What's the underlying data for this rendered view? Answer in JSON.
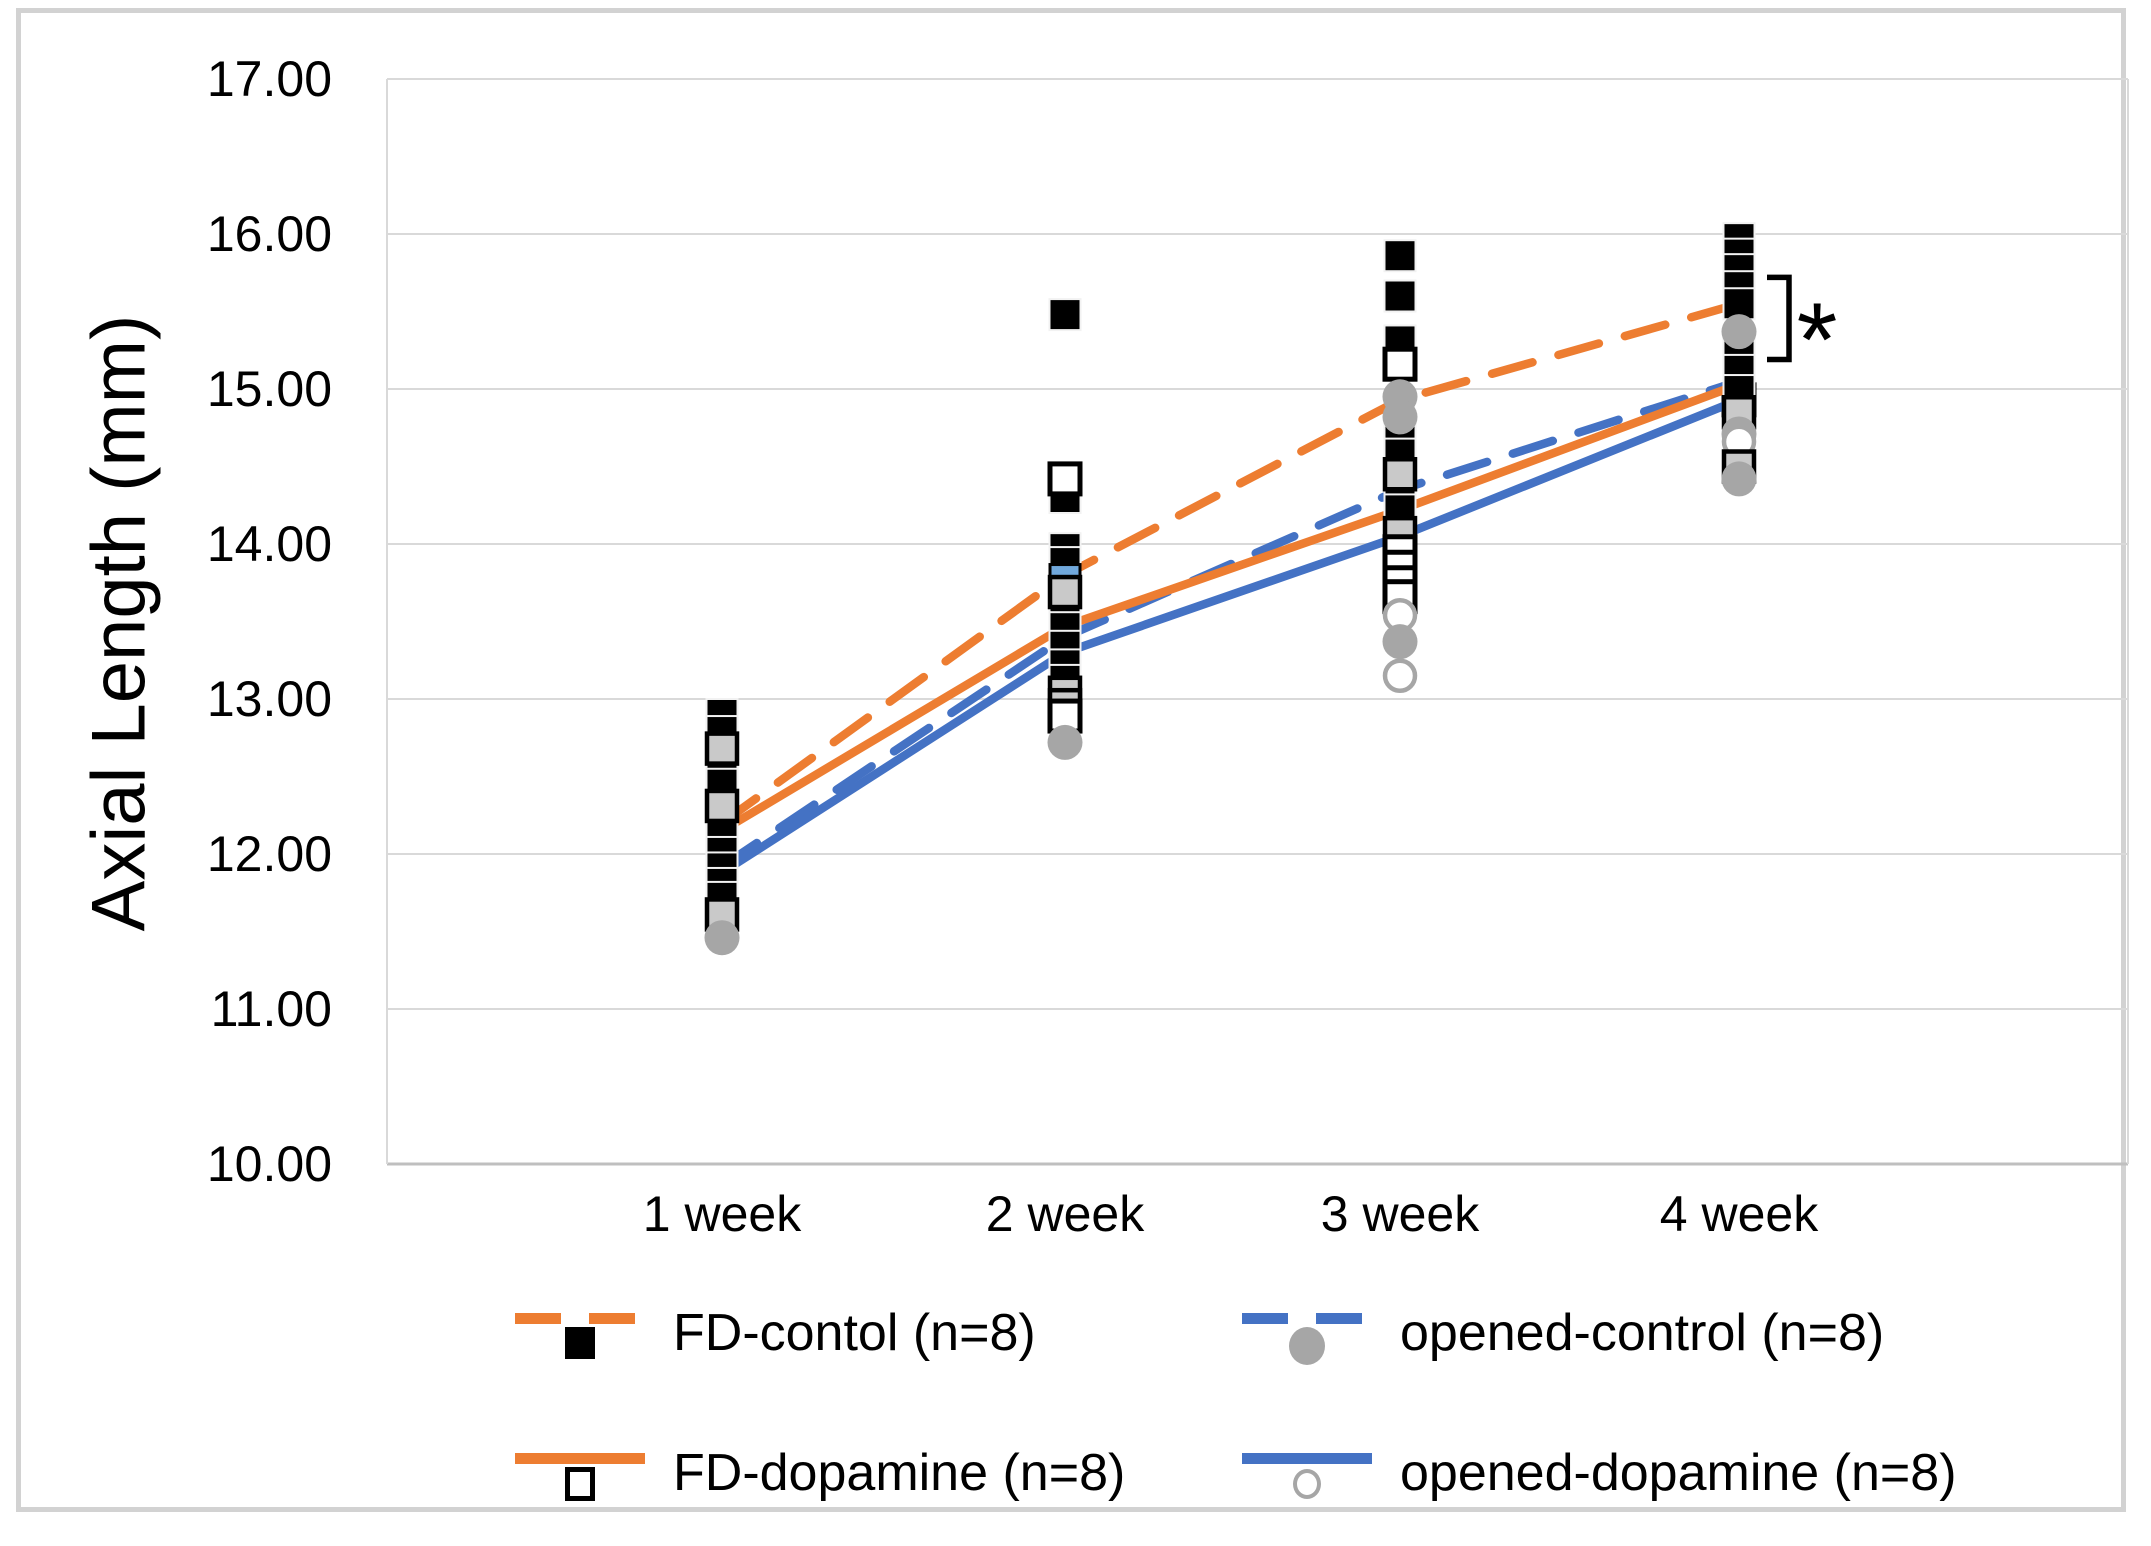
{
  "figure": {
    "background": "#FFFFFF",
    "frame_border_color": "#D2D2D2"
  },
  "legend": {
    "items": [
      {
        "id": "fd_control",
        "label": "FD-contol (n=8)"
      },
      {
        "id": "opened_control",
        "label": "opened-control (n=8)"
      },
      {
        "id": "fd_dopamine",
        "label": "FD-dopamine (n=8)"
      },
      {
        "id": "opened_dopamine",
        "label": "opened-dopamine (n=8)"
      }
    ]
  },
  "chart_data": {
    "type": "line",
    "title": "",
    "y_axis": {
      "label": "Axial Length (mm)",
      "min": 10,
      "max": 17,
      "step": 1,
      "tick_values": [
        17,
        16,
        15,
        14,
        13,
        12,
        11,
        10
      ],
      "tick_labels": [
        "17.00",
        "16.00",
        "15.00",
        "14.00",
        "13.00",
        "12.00",
        "11.00",
        "10.00"
      ]
    },
    "x_axis": {
      "categories": [
        "1 week",
        "2 week",
        "3 week",
        "4 week"
      ]
    },
    "grid_color": "#D9D9D9",
    "axis_color": "#BFBFBF",
    "series": [
      {
        "id": "fd_control",
        "name": "FD-contol (n=8)",
        "color": "#ED7D31",
        "line": "dashed",
        "marker": "black-square",
        "means": [
          12.2,
          13.8,
          14.93,
          15.55
        ]
      },
      {
        "id": "opened_control",
        "name": "opened-control (n=8)",
        "color": "#4472C4",
        "line": "dashed",
        "marker": "gray-circle",
        "means": [
          11.92,
          13.4,
          14.35,
          15.05
        ]
      },
      {
        "id": "fd_dopamine",
        "name": "FD-dopamine (n=8)",
        "color": "#ED7D31",
        "line": "solid",
        "marker": "open-square",
        "means": [
          12.15,
          13.47,
          14.22,
          15.03
        ]
      },
      {
        "id": "opened_dopamine",
        "name": "opened-dopamine (n=8)",
        "color": "#4472C4",
        "line": "solid",
        "marker": "open-circle",
        "means": [
          11.88,
          13.3,
          14.05,
          14.93
        ]
      }
    ],
    "marker_styles": {
      "bs": {
        "name": "black-square",
        "fill": "#000000",
        "stroke": "#F2F2F2"
      },
      "gs": {
        "name": "gray-square",
        "fill": "#C9C9C9",
        "stroke": "#000000"
      },
      "os": {
        "name": "open-square",
        "fill": "#FFFFFF",
        "stroke": "#000000"
      },
      "ls": {
        "name": "lightblue-square",
        "fill": "#70A8DC",
        "stroke": "#000000"
      },
      "gc": {
        "name": "gray-circle",
        "fill": "#A6A6A6",
        "stroke": "#A6A6A6"
      },
      "oc": {
        "name": "open-circle",
        "fill": "#FFFFFF",
        "stroke": "#A6A6A6"
      }
    },
    "scatter_points": [
      {
        "w": 0,
        "t": "bs",
        "v": 12.9
      },
      {
        "w": 0,
        "t": "bs",
        "v": 12.79
      },
      {
        "w": 0,
        "t": "gs",
        "v": 12.68
      },
      {
        "w": 0,
        "t": "bs",
        "v": 12.56
      },
      {
        "w": 0,
        "t": "bs",
        "v": 12.45
      },
      {
        "w": 0,
        "t": "gs",
        "v": 12.31
      },
      {
        "w": 0,
        "t": "bs",
        "v": 12.21
      },
      {
        "w": 0,
        "t": "bs",
        "v": 12.11
      },
      {
        "w": 0,
        "t": "bs",
        "v": 12.01
      },
      {
        "w": 0,
        "t": "bs",
        "v": 11.91
      },
      {
        "w": 0,
        "t": "bs",
        "v": 11.81
      },
      {
        "w": 0,
        "t": "bs",
        "v": 11.72
      },
      {
        "w": 0,
        "t": "gs",
        "v": 11.61
      },
      {
        "w": 0,
        "t": "gc",
        "v": 11.46
      },
      {
        "w": 1,
        "t": "bs",
        "v": 15.48
      },
      {
        "w": 1,
        "t": "os",
        "v": 14.42
      },
      {
        "w": 1,
        "t": "bs",
        "v": 14.3
      },
      {
        "w": 1,
        "t": "bs",
        "v": 13.97
      },
      {
        "w": 1,
        "t": "bs",
        "v": 13.88
      },
      {
        "w": 1,
        "t": "ls",
        "v": 13.79
      },
      {
        "w": 1,
        "t": "gs",
        "v": 13.69
      },
      {
        "w": 1,
        "t": "bs",
        "v": 13.58
      },
      {
        "w": 1,
        "t": "bs",
        "v": 13.46
      },
      {
        "w": 1,
        "t": "bs",
        "v": 13.34
      },
      {
        "w": 1,
        "t": "bs",
        "v": 13.22
      },
      {
        "w": 1,
        "t": "bs",
        "v": 13.12
      },
      {
        "w": 1,
        "t": "gs",
        "v": 13.04
      },
      {
        "w": 1,
        "t": "gs",
        "v": 12.96
      },
      {
        "w": 1,
        "t": "os",
        "v": 12.89
      },
      {
        "w": 1,
        "t": "gc",
        "v": 12.72
      },
      {
        "w": 2,
        "t": "bs",
        "v": 15.86
      },
      {
        "w": 2,
        "t": "bs",
        "v": 15.6
      },
      {
        "w": 2,
        "t": "bs",
        "v": 15.31
      },
      {
        "w": 2,
        "t": "os",
        "v": 15.16
      },
      {
        "w": 2,
        "t": "gc",
        "v": 14.95
      },
      {
        "w": 2,
        "t": "gc",
        "v": 14.82
      },
      {
        "w": 2,
        "t": "bs",
        "v": 14.7
      },
      {
        "w": 2,
        "t": "bs",
        "v": 14.58
      },
      {
        "w": 2,
        "t": "gs",
        "v": 14.45
      },
      {
        "w": 2,
        "t": "bs",
        "v": 14.33
      },
      {
        "w": 2,
        "t": "bs",
        "v": 14.22
      },
      {
        "w": 2,
        "t": "gs",
        "v": 14.07
      },
      {
        "w": 2,
        "t": "os",
        "v": 13.95
      },
      {
        "w": 2,
        "t": "os",
        "v": 13.85
      },
      {
        "w": 2,
        "t": "os",
        "v": 13.75
      },
      {
        "w": 2,
        "t": "os",
        "v": 13.66
      },
      {
        "w": 2,
        "t": "oc",
        "v": 13.54
      },
      {
        "w": 2,
        "t": "gc",
        "v": 13.37
      },
      {
        "w": 2,
        "t": "oc",
        "v": 13.15
      },
      {
        "w": 3,
        "t": "bs",
        "v": 15.97
      },
      {
        "w": 3,
        "t": "bs",
        "v": 15.87
      },
      {
        "w": 3,
        "t": "bs",
        "v": 15.77
      },
      {
        "w": 3,
        "t": "bs",
        "v": 15.66
      },
      {
        "w": 3,
        "t": "bs",
        "v": 15.55
      },
      {
        "w": 3,
        "t": "gc",
        "v": 15.37
      },
      {
        "w": 3,
        "t": "bs",
        "v": 15.25
      },
      {
        "w": 3,
        "t": "bs",
        "v": 15.12
      },
      {
        "w": 3,
        "t": "bs",
        "v": 14.99
      },
      {
        "w": 3,
        "t": "os",
        "v": 14.93,
        "layer": "back"
      },
      {
        "w": 3,
        "t": "gs",
        "v": 14.85
      },
      {
        "w": 3,
        "t": "gc",
        "v": 14.71
      },
      {
        "w": 3,
        "t": "oc",
        "v": 14.66
      },
      {
        "w": 3,
        "t": "gs",
        "v": 14.5
      },
      {
        "w": 3,
        "t": "gc",
        "v": 14.42
      }
    ],
    "annotation": {
      "week_index": 3,
      "from_value": 15.19,
      "to_value": 15.72,
      "label": "*"
    }
  }
}
